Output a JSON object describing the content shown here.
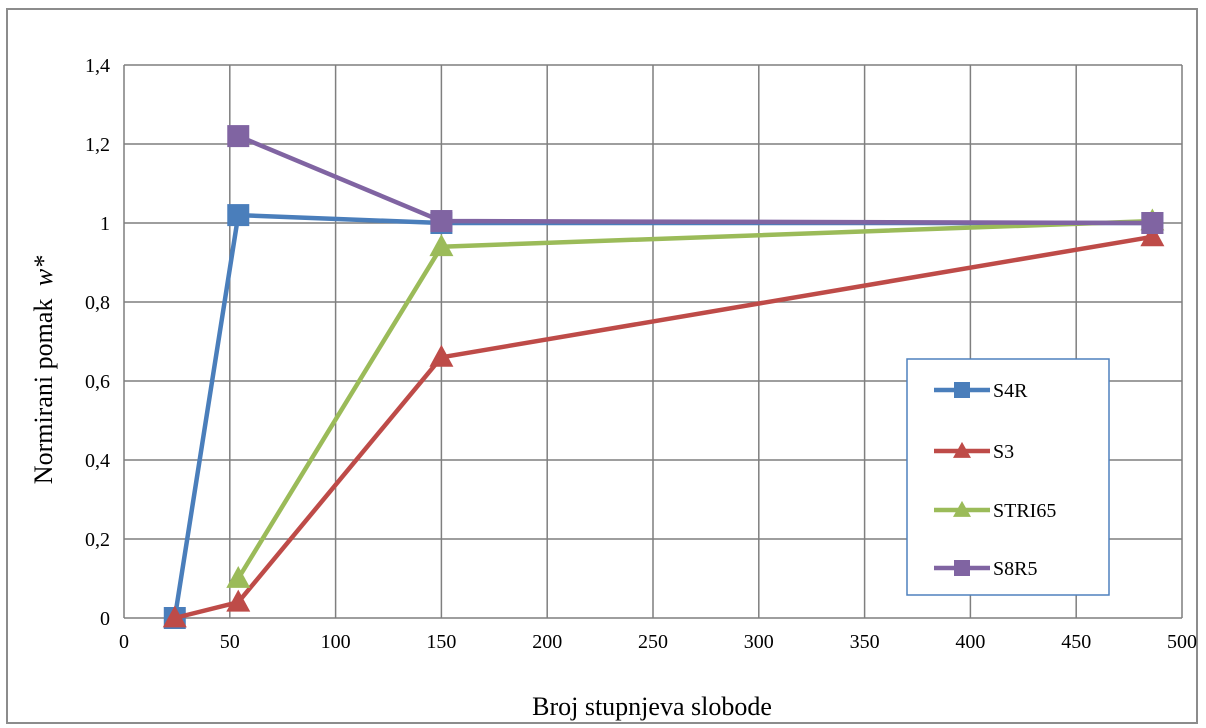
{
  "chart_data": {
    "type": "line",
    "xlabel": "Broj stupnjeva slobode",
    "ylabel": "Normirani pomak",
    "ylabel_symbol": "w*",
    "xlim": [
      0,
      500
    ],
    "ylim": [
      0,
      1.4
    ],
    "x_ticks": [
      "0",
      "50",
      "100",
      "150",
      "200",
      "250",
      "300",
      "350",
      "400",
      "450",
      "500"
    ],
    "y_ticks": [
      "0",
      "0,2",
      "0,4",
      "0,6",
      "0,8",
      "1",
      "1,2",
      "1,4"
    ],
    "grid": true,
    "legend_position": "right",
    "series": [
      {
        "name": "S4R",
        "color": "#4a7ebb",
        "marker": "square",
        "points": [
          [
            24,
            0
          ],
          [
            54,
            1.02
          ],
          [
            150,
            1.0
          ],
          [
            486,
            1.0
          ]
        ]
      },
      {
        "name": "S3",
        "color": "#be4b48",
        "marker": "triangle",
        "points": [
          [
            24,
            0
          ],
          [
            54,
            0.04
          ],
          [
            150,
            0.66
          ],
          [
            486,
            0.965
          ]
        ]
      },
      {
        "name": "STRI65",
        "color": "#9bbb59",
        "marker": "triangle",
        "points": [
          [
            54,
            0.1
          ],
          [
            150,
            0.94
          ],
          [
            486,
            1.005
          ]
        ]
      },
      {
        "name": "S8R5",
        "color": "#8064a2",
        "marker": "square",
        "points": [
          [
            54,
            1.22
          ],
          [
            150,
            1.005
          ],
          [
            486,
            1.0
          ]
        ]
      }
    ]
  }
}
